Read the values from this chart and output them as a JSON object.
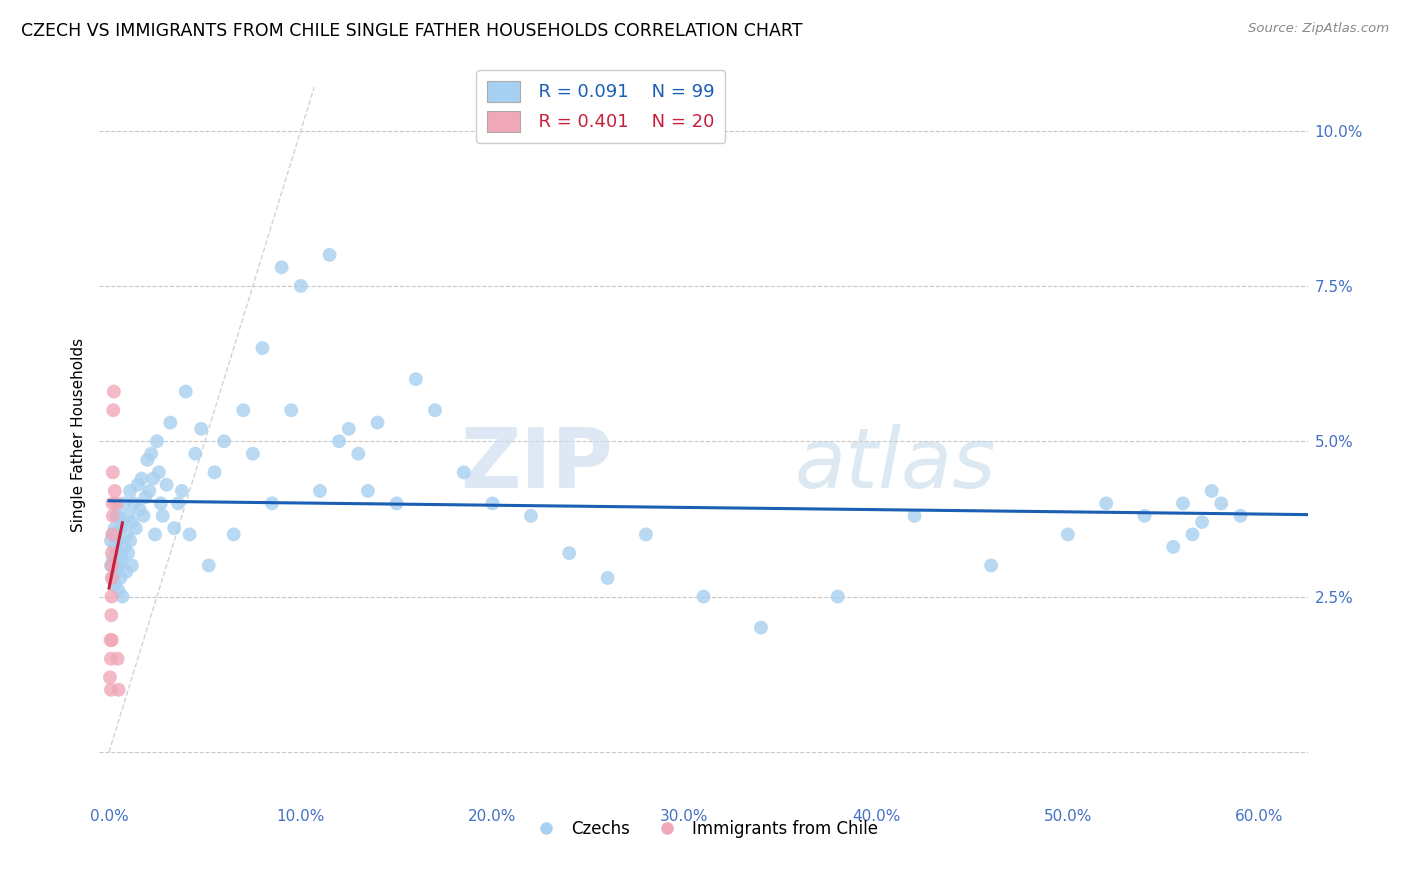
{
  "title": "CZECH VS IMMIGRANTS FROM CHILE SINGLE FATHER HOUSEHOLDS CORRELATION CHART",
  "source": "Source: ZipAtlas.com",
  "ylabel_label": "Single Father Households",
  "x_ticks": [
    0.0,
    0.1,
    0.2,
    0.3,
    0.4,
    0.5,
    0.6
  ],
  "x_tick_labels": [
    "0.0%",
    "10.0%",
    "20.0%",
    "30.0%",
    "40.0%",
    "50.0%",
    "60.0%"
  ],
  "y_ticks": [
    0.0,
    0.025,
    0.05,
    0.075,
    0.1
  ],
  "y_tick_labels": [
    "",
    "2.5%",
    "5.0%",
    "7.5%",
    "10.0%"
  ],
  "xlim": [
    -0.005,
    0.625
  ],
  "ylim": [
    -0.008,
    0.11
  ],
  "czech_color": "#a8d0f0",
  "chile_color": "#f0a8b8",
  "trendline_czech_color": "#1a5fb4",
  "trendline_chile_color": "#c8203c",
  "diagonal_color": "#c8c8c8",
  "R_czech": 0.091,
  "N_czech": 99,
  "R_chile": 0.401,
  "N_chile": 20,
  "czechs_x": [
    0.001,
    0.001,
    0.002,
    0.002,
    0.002,
    0.003,
    0.003,
    0.003,
    0.003,
    0.004,
    0.004,
    0.004,
    0.005,
    0.005,
    0.005,
    0.005,
    0.006,
    0.006,
    0.006,
    0.007,
    0.007,
    0.007,
    0.008,
    0.008,
    0.009,
    0.009,
    0.01,
    0.01,
    0.011,
    0.011,
    0.012,
    0.012,
    0.013,
    0.014,
    0.015,
    0.016,
    0.017,
    0.018,
    0.019,
    0.02,
    0.021,
    0.022,
    0.023,
    0.024,
    0.025,
    0.026,
    0.027,
    0.028,
    0.03,
    0.032,
    0.034,
    0.036,
    0.038,
    0.04,
    0.042,
    0.045,
    0.048,
    0.052,
    0.055,
    0.06,
    0.065,
    0.07,
    0.075,
    0.08,
    0.085,
    0.09,
    0.095,
    0.1,
    0.11,
    0.115,
    0.12,
    0.125,
    0.13,
    0.135,
    0.14,
    0.15,
    0.16,
    0.17,
    0.185,
    0.2,
    0.22,
    0.24,
    0.26,
    0.28,
    0.31,
    0.34,
    0.38,
    0.42,
    0.46,
    0.5,
    0.52,
    0.54,
    0.555,
    0.56,
    0.565,
    0.57,
    0.575,
    0.58,
    0.59
  ],
  "czechs_y": [
    0.03,
    0.034,
    0.028,
    0.031,
    0.035,
    0.027,
    0.03,
    0.033,
    0.036,
    0.029,
    0.032,
    0.038,
    0.026,
    0.03,
    0.034,
    0.038,
    0.028,
    0.032,
    0.036,
    0.025,
    0.031,
    0.037,
    0.033,
    0.04,
    0.029,
    0.035,
    0.032,
    0.038,
    0.034,
    0.042,
    0.03,
    0.037,
    0.04,
    0.036,
    0.043,
    0.039,
    0.044,
    0.038,
    0.041,
    0.047,
    0.042,
    0.048,
    0.044,
    0.035,
    0.05,
    0.045,
    0.04,
    0.038,
    0.043,
    0.053,
    0.036,
    0.04,
    0.042,
    0.058,
    0.035,
    0.048,
    0.052,
    0.03,
    0.045,
    0.05,
    0.035,
    0.055,
    0.048,
    0.065,
    0.04,
    0.078,
    0.055,
    0.075,
    0.042,
    0.08,
    0.05,
    0.052,
    0.048,
    0.042,
    0.053,
    0.04,
    0.06,
    0.055,
    0.045,
    0.04,
    0.038,
    0.032,
    0.028,
    0.035,
    0.025,
    0.02,
    0.025,
    0.038,
    0.03,
    0.035,
    0.04,
    0.038,
    0.033,
    0.04,
    0.035,
    0.037,
    0.042,
    0.04,
    0.038
  ],
  "chile_x": [
    0.0005,
    0.0008,
    0.001,
    0.001,
    0.0012,
    0.0013,
    0.0014,
    0.0015,
    0.0015,
    0.0016,
    0.0017,
    0.0018,
    0.002,
    0.002,
    0.0022,
    0.0025,
    0.003,
    0.004,
    0.0045,
    0.005
  ],
  "chile_y": [
    0.012,
    0.018,
    0.01,
    0.015,
    0.022,
    0.025,
    0.028,
    0.032,
    0.018,
    0.03,
    0.035,
    0.04,
    0.045,
    0.038,
    0.055,
    0.058,
    0.042,
    0.04,
    0.015,
    0.01
  ],
  "watermark_zip": "ZIP",
  "watermark_atlas": "atlas",
  "background_color": "#ffffff",
  "grid_color": "#c8c8c8",
  "tick_label_color": "#4472c4",
  "legend_box_color": "#c8c8c8"
}
